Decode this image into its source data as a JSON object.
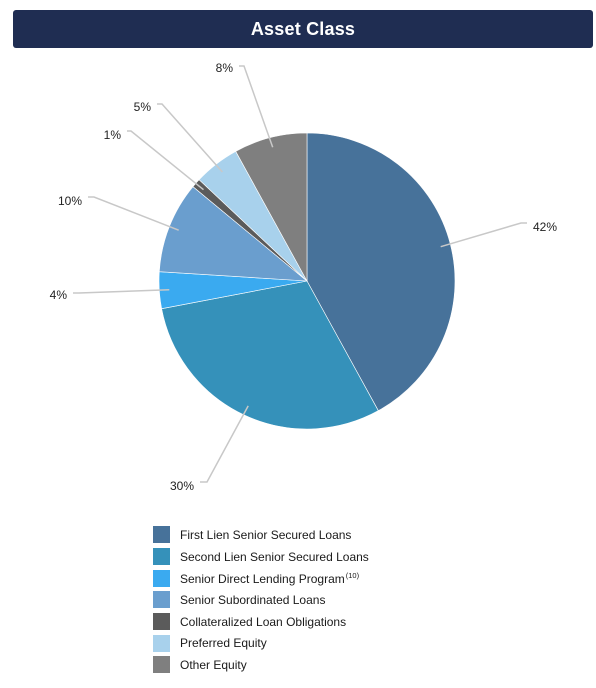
{
  "header": {
    "title": "Asset Class"
  },
  "colors": {
    "title_bar_bg": "#1f2d52",
    "title_text": "#ffffff",
    "leader_line": "#c8c8c8"
  },
  "chart_data": {
    "type": "pie",
    "title": "Asset Class",
    "start_angle": "12 o'clock",
    "direction": "clockwise",
    "legend_placement": "bottom",
    "slices": [
      {
        "name": "First Lien Senior Secured Loans",
        "value": 42,
        "label": "42%",
        "color": "#47729a",
        "superscript": ""
      },
      {
        "name": "Second Lien Senior Secured Loans",
        "value": 30,
        "label": "30%",
        "color": "#3591ba",
        "superscript": ""
      },
      {
        "name": "Senior Direct Lending Program",
        "value": 4,
        "label": "4%",
        "color": "#3aaaf0",
        "superscript": "(10)"
      },
      {
        "name": "Senior Subordinated Loans",
        "value": 10,
        "label": "10%",
        "color": "#6a9ece",
        "superscript": ""
      },
      {
        "name": "Collateralized Loan Obligations",
        "value": 1,
        "label": "1%",
        "color": "#5b5b5b",
        "superscript": ""
      },
      {
        "name": "Preferred Equity",
        "value": 5,
        "label": "5%",
        "color": "#a8d1ec",
        "superscript": ""
      },
      {
        "name": "Other Equity",
        "value": 8,
        "label": "8%",
        "color": "#7f7f7f",
        "superscript": ""
      }
    ]
  }
}
